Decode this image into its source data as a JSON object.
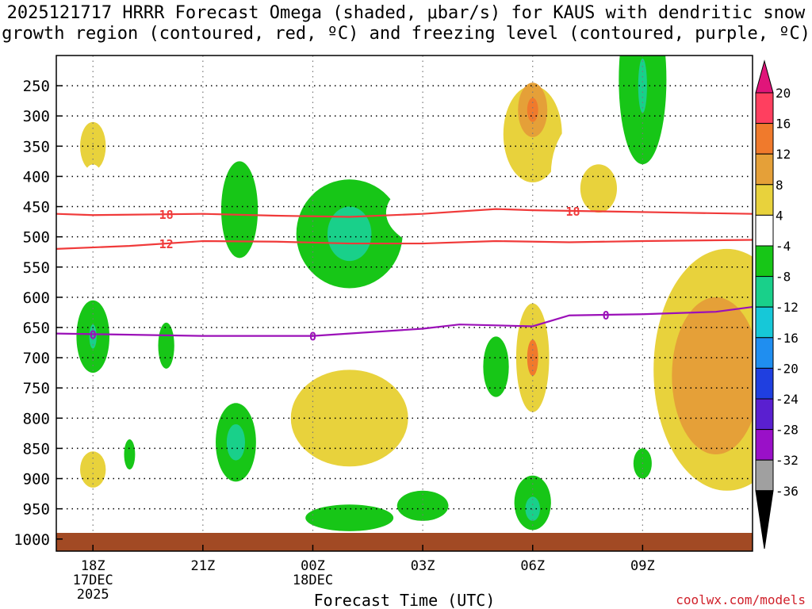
{
  "chart_data": {
    "type": "heatmap",
    "title_line1": "2025121717 HRRR Forecast Omega (shaded, μbar/s) for KAUS with dendritic snow",
    "title_line2": "growth region (contoured, red, ºC) and freezing level (contoured, purple, ºC)",
    "xlabel": "Forecast Time (UTC)",
    "credit": "coolwx.com/models",
    "x_range_hours": [
      -1,
      18
    ],
    "y_range_hpa": [
      200,
      1020
    ],
    "x_ticks": [
      {
        "hour": 0,
        "label": "18Z",
        "sub1": "17DEC",
        "sub2": "2025"
      },
      {
        "hour": 3,
        "label": "21Z",
        "sub1": "",
        "sub2": ""
      },
      {
        "hour": 6,
        "label": "00Z",
        "sub1": "18DEC",
        "sub2": ""
      },
      {
        "hour": 9,
        "label": "03Z",
        "sub1": "",
        "sub2": ""
      },
      {
        "hour": 12,
        "label": "06Z",
        "sub1": "",
        "sub2": ""
      },
      {
        "hour": 15,
        "label": "09Z",
        "sub1": "",
        "sub2": ""
      }
    ],
    "y_ticks": [
      250,
      300,
      350,
      400,
      450,
      500,
      550,
      600,
      650,
      700,
      750,
      800,
      850,
      900,
      950,
      1000
    ],
    "colorbar": {
      "levels": [
        {
          "label": "20",
          "color": "#ff3f5f"
        },
        {
          "label": "16",
          "color": "#f07a2c"
        },
        {
          "label": "12",
          "color": "#e5a038"
        },
        {
          "label": "8",
          "color": "#e8d23c"
        },
        {
          "label": "4",
          "color": "#ffffff"
        },
        {
          "label": "-4",
          "color": "#17c617"
        },
        {
          "label": "-8",
          "color": "#19d08a"
        },
        {
          "label": "-12",
          "color": "#16c8d8"
        },
        {
          "label": "-16",
          "color": "#1f8ef0"
        },
        {
          "label": "-20",
          "color": "#1f3fe0"
        },
        {
          "label": "-24",
          "color": "#5a1fd0"
        },
        {
          "label": "-28",
          "color": "#9a10c8"
        },
        {
          "label": "-32",
          "color": "#a0a0a0"
        },
        {
          "label": "-36",
          "color": "#000000"
        }
      ],
      "top_arrow_color": "#e0157a",
      "bottom_arrow_color": "#000000"
    },
    "omega_blobs": [
      {
        "hour": 0.0,
        "p": 365,
        "rh": 0.7,
        "rp": 75,
        "level": 4
      },
      {
        "hour": 0.0,
        "p": 350,
        "rh": 0.35,
        "rp": 40,
        "level": 8
      },
      {
        "hour": 0.0,
        "p": 470,
        "rh": 0.45,
        "rp": 90,
        "level": 4
      },
      {
        "hour": 0.0,
        "p": 885,
        "rh": 0.75,
        "rp": 70,
        "level": 4
      },
      {
        "hour": 0.0,
        "p": 885,
        "rh": 0.35,
        "rp": 30,
        "level": 8
      },
      {
        "hour": 0.0,
        "p": 665,
        "rh": 0.45,
        "rp": 60,
        "level": -4
      },
      {
        "hour": 0.0,
        "p": 665,
        "rh": 0.1,
        "rp": 20,
        "level": -8
      },
      {
        "hour": 1.0,
        "p": 860,
        "rh": 0.15,
        "rp": 25,
        "level": -4
      },
      {
        "hour": 2.0,
        "p": 680,
        "rh": 0.22,
        "rp": 38,
        "level": -4
      },
      {
        "hour": 2.3,
        "p": 885,
        "rh": 0.4,
        "rp": 30,
        "level": 4
      },
      {
        "hour": 3.0,
        "p": 470,
        "rh": 0.4,
        "rp": 130,
        "level": 4
      },
      {
        "hour": 3.0,
        "p": 620,
        "rh": 0.3,
        "rp": 140,
        "level": 4
      },
      {
        "hour": 4.0,
        "p": 455,
        "rh": 0.5,
        "rp": 80,
        "level": -4
      },
      {
        "hour": 4.0,
        "p": 840,
        "rh": 0.7,
        "rp": 80,
        "level": 4
      },
      {
        "hour": 3.9,
        "p": 840,
        "rh": 0.55,
        "rp": 65,
        "level": -4
      },
      {
        "hour": 3.9,
        "p": 840,
        "rh": 0.25,
        "rp": 30,
        "level": -8
      },
      {
        "hour": 7.0,
        "p": 720,
        "rh": 2.1,
        "rp": 185,
        "level": 4
      },
      {
        "hour": 7.0,
        "p": 800,
        "rh": 1.6,
        "rp": 80,
        "level": 8
      },
      {
        "hour": 6.7,
        "p": 600,
        "rh": 0.8,
        "rp": 55,
        "level": 4
      },
      {
        "hour": 7.0,
        "p": 495,
        "rh": 1.45,
        "rp": 90,
        "level": -4
      },
      {
        "hour": 7.0,
        "p": 495,
        "rh": 0.6,
        "rp": 45,
        "level": -8
      },
      {
        "hour": 7.0,
        "p": 965,
        "rh": 1.2,
        "rp": 22,
        "level": -4
      },
      {
        "hour": 6.9,
        "p": 245,
        "rh": 1.0,
        "rp": 60,
        "level": 4
      },
      {
        "hour": 10.5,
        "p": 330,
        "rh": 2.0,
        "rp": 120,
        "level": 4
      },
      {
        "hour": 11.0,
        "p": 460,
        "rh": 3.0,
        "rp": 80,
        "level": 4
      },
      {
        "hour": 10.5,
        "p": 440,
        "rh": 0.45,
        "rp": 30,
        "level": 4
      },
      {
        "hour": 9.5,
        "p": 720,
        "rh": 1.1,
        "rp": 90,
        "level": 4
      },
      {
        "hour": 10.5,
        "p": 820,
        "rh": 1.6,
        "rp": 60,
        "level": 4
      },
      {
        "hour": 12.0,
        "p": 330,
        "rh": 1.2,
        "rp": 105,
        "level": 4
      },
      {
        "hour": 12.0,
        "p": 330,
        "rh": 0.8,
        "rp": 80,
        "level": 8
      },
      {
        "hour": 12.0,
        "p": 290,
        "rh": 0.4,
        "rp": 45,
        "level": 12
      },
      {
        "hour": 12.0,
        "p": 290,
        "rh": 0.15,
        "rp": 20,
        "level": 16
      },
      {
        "hour": 12.0,
        "p": 620,
        "rh": 1.0,
        "rp": 120,
        "level": 4
      },
      {
        "hour": 12.0,
        "p": 700,
        "rh": 0.45,
        "rp": 90,
        "level": 8
      },
      {
        "hour": 12.0,
        "p": 700,
        "rh": 0.15,
        "rp": 30,
        "level": 16
      },
      {
        "hour": 12.0,
        "p": 905,
        "rh": 0.7,
        "rp": 80,
        "level": 4
      },
      {
        "hour": 12.0,
        "p": 940,
        "rh": 0.5,
        "rp": 45,
        "level": -4
      },
      {
        "hour": 12.0,
        "p": 950,
        "rh": 0.2,
        "rp": 20,
        "level": -8
      },
      {
        "hour": 14.0,
        "p": 395,
        "rh": 1.5,
        "rp": 110,
        "level": 4
      },
      {
        "hour": 13.8,
        "p": 420,
        "rh": 0.5,
        "rp": 40,
        "level": 8
      },
      {
        "hour": 11.0,
        "p": 715,
        "rh": 0.35,
        "rp": 50,
        "level": -4
      },
      {
        "hour": 15.0,
        "p": 240,
        "rh": 0.65,
        "rp": 140,
        "level": -4
      },
      {
        "hour": 15.0,
        "p": 250,
        "rh": 0.12,
        "rp": 45,
        "level": -8
      },
      {
        "hour": 17.5,
        "p": 700,
        "rh": 2.8,
        "rp": 280,
        "level": 4
      },
      {
        "hour": 17.3,
        "p": 720,
        "rh": 2.0,
        "rp": 200,
        "level": 8
      },
      {
        "hour": 17.0,
        "p": 730,
        "rh": 1.2,
        "rp": 130,
        "level": 12
      },
      {
        "hour": 8.9,
        "p": 470,
        "rh": 0.35,
        "rp": 40,
        "level": 4
      },
      {
        "hour": 15.0,
        "p": 875,
        "rh": 0.25,
        "rp": 25,
        "level": -4
      },
      {
        "hour": 9.0,
        "p": 945,
        "rh": 0.7,
        "rp": 25,
        "level": -4
      }
    ],
    "red_contours": [
      {
        "label": "18",
        "label_hours": [
          2.0,
          13.1
        ],
        "points": [
          [
            -1,
            462
          ],
          [
            0,
            464
          ],
          [
            3,
            462
          ],
          [
            5,
            465
          ],
          [
            7,
            467
          ],
          [
            9,
            462
          ],
          [
            11,
            454
          ],
          [
            12,
            456
          ],
          [
            14,
            458
          ],
          [
            16,
            460
          ],
          [
            18,
            462
          ]
        ]
      },
      {
        "label": "12",
        "label_hours": [
          2.0
        ],
        "points": [
          [
            -1,
            520
          ],
          [
            1,
            515
          ],
          [
            3,
            507
          ],
          [
            5,
            508
          ],
          [
            7,
            511
          ],
          [
            9,
            511
          ],
          [
            11,
            507
          ],
          [
            13,
            509
          ],
          [
            15,
            507
          ],
          [
            18,
            505
          ]
        ]
      }
    ],
    "purple_contours": [
      {
        "label": "0",
        "label_hours": [
          0.0,
          6.0,
          14.0
        ],
        "points": [
          [
            -1,
            660
          ],
          [
            0,
            661
          ],
          [
            3,
            664
          ],
          [
            6,
            664
          ],
          [
            9,
            652
          ],
          [
            10,
            645
          ],
          [
            12,
            648
          ],
          [
            13,
            630
          ],
          [
            15,
            628
          ],
          [
            17,
            624
          ],
          [
            18,
            616
          ]
        ]
      }
    ]
  }
}
